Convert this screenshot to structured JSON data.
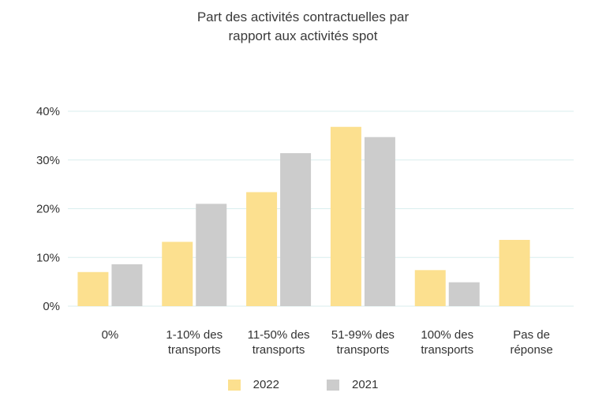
{
  "chart_data": {
    "type": "bar",
    "title_lines": [
      "Part des activités contractuelles par",
      "rapport aux activités spot"
    ],
    "categories": [
      [
        "0%"
      ],
      [
        "1-10% des",
        "transports"
      ],
      [
        "11-50% des",
        "transports"
      ],
      [
        "51-99% des",
        "transports"
      ],
      [
        "100% des",
        "transports"
      ],
      [
        "Pas de",
        "réponse"
      ]
    ],
    "series": [
      {
        "name": "2022",
        "color": "#fce08f",
        "values": [
          7,
          13.2,
          23.4,
          36.8,
          7.4,
          13.6
        ]
      },
      {
        "name": "2021",
        "color": "#cccccc",
        "values": [
          8.6,
          21,
          31.4,
          34.7,
          4.9,
          null
        ]
      }
    ],
    "ylim": [
      0,
      40
    ],
    "yticks": [
      0,
      10,
      20,
      30,
      40
    ],
    "ytick_labels": [
      "0%",
      "10%",
      "20%",
      "30%",
      "40%"
    ],
    "grid": true,
    "grid_color": "#d9eeee",
    "legend_position": "bottom"
  }
}
